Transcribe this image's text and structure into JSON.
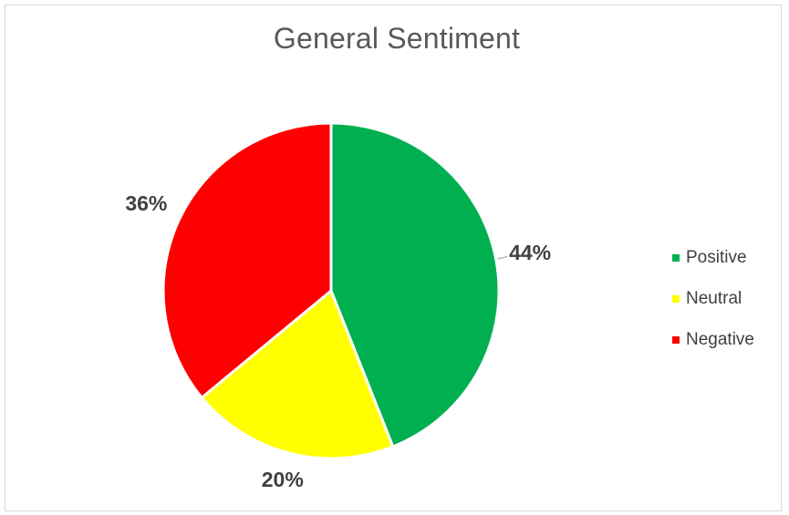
{
  "chart_data": {
    "type": "pie",
    "title": "General Sentiment",
    "categories": [
      "Positive",
      "Neutral",
      "Negative"
    ],
    "values": [
      44,
      20,
      36
    ],
    "value_labels": [
      "44%",
      "20%",
      "36%"
    ],
    "colors": [
      "#00b050",
      "#ffff00",
      "#ff0000"
    ],
    "legend": "right",
    "start_angle": "12 o'clock, clockwise"
  }
}
